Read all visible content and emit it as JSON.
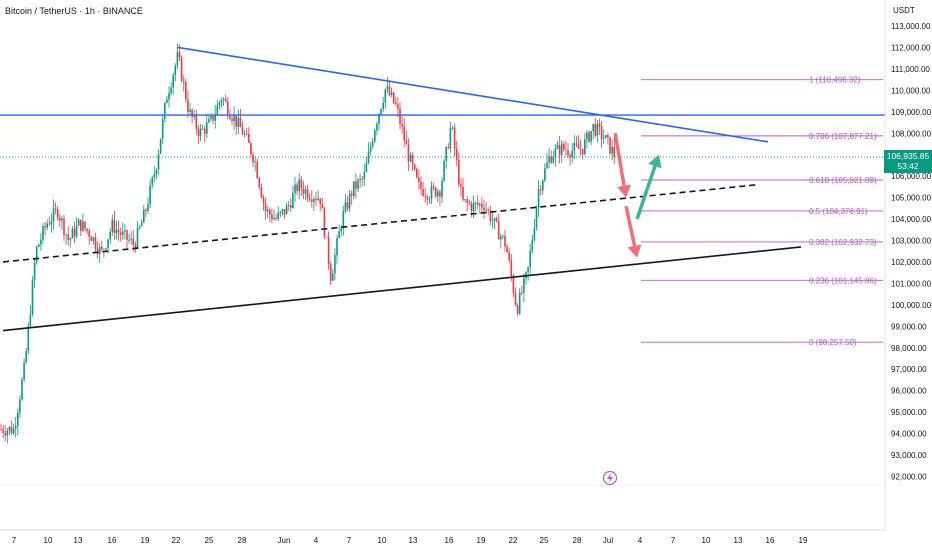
{
  "header": {
    "title": "Bitcoin / TetherUS · 1h · BINANCE"
  },
  "price_axis": {
    "unit": "USDT",
    "current_price": "106,935.85",
    "countdown": "53:42",
    "badge_color": "#089981"
  },
  "colors": {
    "up": "#089981",
    "down": "#f23645",
    "trendline_blue": "#2962ff",
    "fib": "#b55cc9",
    "arrow_red": "#ef6f7a",
    "arrow_green": "#3bb59a"
  },
  "icons": {
    "watermark": "lightning-icon"
  },
  "chart_data": {
    "type": "candlestick",
    "title": "Bitcoin / TetherUS · 1h · BINANCE",
    "ylabel": "USDT",
    "ylim": [
      91200,
      113600
    ],
    "grid": false,
    "y_ticks": [
      "113,000.00",
      "112,000.00",
      "111,000.00",
      "110,000.00",
      "109,000.00",
      "108,000.00",
      "107,000.00",
      "106,000.00",
      "105,000.00",
      "104,000.00",
      "103,000.00",
      "102,000.00",
      "101,000.00",
      "100,000.00",
      "99,000.00",
      "98,000.00",
      "97,000.00",
      "96,000.00",
      "95,000.00",
      "94,000.00",
      "93,000.00",
      "92,000.00"
    ],
    "x_ticks": [
      "7",
      "10",
      "13",
      "16",
      "19",
      "22",
      "25",
      "28",
      "Jun",
      "4",
      "7",
      "10",
      "13",
      "16",
      "19",
      "22",
      "25",
      "28",
      "Jul",
      "4",
      "7",
      "10",
      "13",
      "16",
      "19"
    ],
    "path_points": [
      {
        "d": "May 7",
        "p": 94200
      },
      {
        "d": "May 8",
        "p": 97200
      },
      {
        "d": "May 9",
        "p": 102500
      },
      {
        "d": "May 10",
        "p": 103800
      },
      {
        "d": "May 11",
        "p": 104400
      },
      {
        "d": "May 12",
        "p": 103000
      },
      {
        "d": "May 13",
        "p": 103800
      },
      {
        "d": "May 14",
        "p": 103300
      },
      {
        "d": "May 15",
        "p": 102400
      },
      {
        "d": "May 16",
        "p": 103700
      },
      {
        "d": "May 17",
        "p": 103200
      },
      {
        "d": "May 18",
        "p": 102800
      },
      {
        "d": "May 19",
        "p": 104300
      },
      {
        "d": "May 20",
        "p": 106500
      },
      {
        "d": "May 21",
        "p": 109800
      },
      {
        "d": "May 22",
        "p": 111600
      },
      {
        "d": "May 23",
        "p": 109000
      },
      {
        "d": "May 24",
        "p": 108000
      },
      {
        "d": "May 25",
        "p": 108500
      },
      {
        "d": "May 26",
        "p": 109700
      },
      {
        "d": "May 27",
        "p": 108800
      },
      {
        "d": "May 28",
        "p": 108000
      },
      {
        "d": "May 29",
        "p": 106800
      },
      {
        "d": "May 30",
        "p": 104400
      },
      {
        "d": "May 31",
        "p": 104000
      },
      {
        "d": "Jun 1",
        "p": 104500
      },
      {
        "d": "Jun 2",
        "p": 105600
      },
      {
        "d": "Jun 3",
        "p": 105200
      },
      {
        "d": "Jun 4",
        "p": 105000
      },
      {
        "d": "Jun 5",
        "p": 101300
      },
      {
        "d": "Jun 6",
        "p": 104000
      },
      {
        "d": "Jun 7",
        "p": 105400
      },
      {
        "d": "Jun 8",
        "p": 105900
      },
      {
        "d": "Jun 9",
        "p": 108300
      },
      {
        "d": "Jun 10",
        "p": 110100
      },
      {
        "d": "Jun 11",
        "p": 109200
      },
      {
        "d": "Jun 12",
        "p": 107100
      },
      {
        "d": "Jun 13",
        "p": 105500
      },
      {
        "d": "Jun 14",
        "p": 105200
      },
      {
        "d": "Jun 15",
        "p": 105400
      },
      {
        "d": "Jun 16",
        "p": 108400
      },
      {
        "d": "Jun 17",
        "p": 104800
      },
      {
        "d": "Jun 18",
        "p": 104600
      },
      {
        "d": "Jun 19",
        "p": 104700
      },
      {
        "d": "Jun 20",
        "p": 103700
      },
      {
        "d": "Jun 21",
        "p": 102800
      },
      {
        "d": "Jun 22",
        "p": 99800
      },
      {
        "d": "Jun 23",
        "p": 101500
      },
      {
        "d": "Jun 24",
        "p": 105400
      },
      {
        "d": "Jun 25",
        "p": 106900
      },
      {
        "d": "Jun 26",
        "p": 107300
      },
      {
        "d": "Jun 27",
        "p": 107200
      },
      {
        "d": "Jun 28",
        "p": 107300
      },
      {
        "d": "Jun 29",
        "p": 108300
      },
      {
        "d": "Jun 30",
        "p": 107800
      },
      {
        "d": "Jul 1",
        "p": 106935
      }
    ],
    "horizontal_line": {
      "price": 108850,
      "color": "#2962ff"
    },
    "fib_levels": [
      {
        "ratio_label": "1",
        "price_label": "(110,496.32)",
        "price": 110496.32
      },
      {
        "ratio_label": "0.786",
        "price_label": "(107,877.21)",
        "price": 107877.21
      },
      {
        "ratio_label": "0.618",
        "price_label": "(105,821.09)",
        "price": 105821.09
      },
      {
        "ratio_label": "0.5",
        "price_label": "(104,376.91)",
        "price": 104376.91
      },
      {
        "ratio_label": "0.382",
        "price_label": "(102,932.73)",
        "price": 102932.73
      },
      {
        "ratio_label": "0.236",
        "price_label": "(101,145.86)",
        "price": 101145.86
      },
      {
        "ratio_label": "0",
        "price_label": "(98,257.50)",
        "price": 98257.5
      }
    ],
    "trendlines": [
      {
        "name": "descending-resistance",
        "color": "#2962ff",
        "style": "solid",
        "from": {
          "d": "May 22",
          "p": 112000
        },
        "to": {
          "d": "Jul 15",
          "p": 107600
        }
      },
      {
        "name": "dashed-mid-support",
        "color": "#131722",
        "style": "dashed",
        "from": {
          "d": "May 6",
          "p": 102000
        },
        "to": {
          "d": "Jul 14",
          "p": 105600
        }
      },
      {
        "name": "rising-support",
        "color": "#131722",
        "style": "solid",
        "from": {
          "d": "May 6",
          "p": 98800
        },
        "to": {
          "d": "Jul 18",
          "p": 102700
        }
      }
    ],
    "projection_arrows": [
      {
        "color": "#ef6f7a",
        "from": {
          "d": "Jul 1",
          "p": 108000
        },
        "to": {
          "d": "Jul 2",
          "p": 105000
        }
      },
      {
        "color": "#ef6f7a",
        "from": {
          "d": "Jul 2",
          "p": 104600
        },
        "to": {
          "d": "Jul 3",
          "p": 102200
        }
      },
      {
        "color": "#3bb59a",
        "from": {
          "d": "Jul 3",
          "p": 104000
        },
        "to": {
          "d": "Jul 5",
          "p": 107000
        }
      }
    ]
  }
}
